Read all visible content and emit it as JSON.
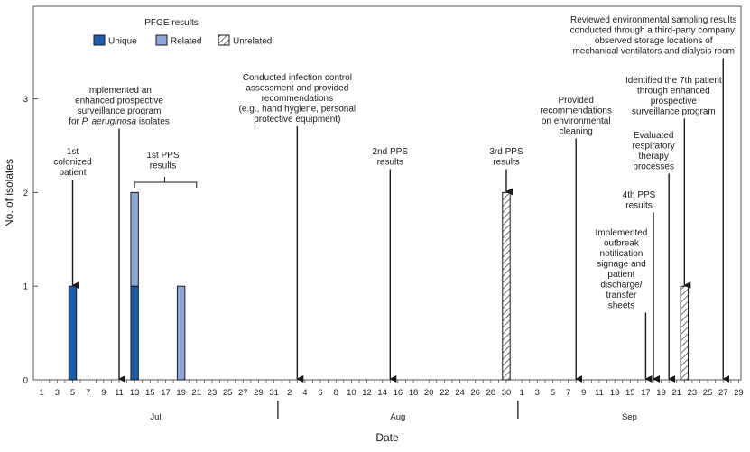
{
  "chart_data": {
    "type": "bar",
    "xlabel": "Date",
    "ylabel": "No. of isolates",
    "ylim": [
      0,
      4
    ],
    "y_ticks": [
      "0",
      "1",
      "2",
      "3"
    ],
    "x_tick_labels": [
      "1",
      "3",
      "5",
      "7",
      "9",
      "11",
      "13",
      "15",
      "17",
      "19",
      "21",
      "23",
      "25",
      "27",
      "29",
      "31",
      "2",
      "4",
      "6",
      "8",
      "10",
      "12",
      "14",
      "16",
      "18",
      "20",
      "22",
      "24",
      "26",
      "28",
      "30",
      "1",
      "3",
      "5",
      "7",
      "9",
      "11",
      "13",
      "15",
      "17",
      "19",
      "21",
      "23",
      "25",
      "27",
      "29"
    ],
    "months": [
      {
        "name": "Jul",
        "start": 0,
        "end": 31
      },
      {
        "name": "Aug",
        "start": 31,
        "end": 61
      },
      {
        "name": "Sep",
        "start": 61,
        "end": 90
      }
    ],
    "legend": {
      "title": "PFGE results",
      "placement": "top-left",
      "items": [
        {
          "key": "unique",
          "label": "Unique",
          "color": "#1e5ba8"
        },
        {
          "key": "related",
          "label": "Related",
          "color": "#8fa6d6"
        },
        {
          "key": "unrelated",
          "label": "Unrelated",
          "pattern": "hatch"
        }
      ]
    },
    "series": [
      {
        "key": "unique",
        "points": [
          {
            "date": "Jul 5",
            "count": 1
          },
          {
            "date": "Jul 13",
            "count": 1
          }
        ]
      },
      {
        "key": "related",
        "points": [
          {
            "date": "Jul 13",
            "count": 1
          },
          {
            "date": "Jul 19",
            "count": 1
          }
        ]
      },
      {
        "key": "unrelated",
        "points": [
          {
            "date": "Aug 30",
            "count": 2
          },
          {
            "date": "Sep 22",
            "count": 1
          }
        ]
      }
    ],
    "annotations": [
      {
        "id": "a1",
        "date": "Jul 5",
        "lines": [
          "1st",
          "colonized",
          "patient"
        ],
        "arrow_to": 1
      },
      {
        "id": "a2",
        "date": "Jul 11",
        "lines": [
          "Implemented an",
          "enhanced prospective",
          "surveillance program",
          "for P. aeruginosa isolates"
        ],
        "arrow_to": 0
      },
      {
        "id": "a3",
        "date": "Jul 13–21",
        "lines": [
          "1st PPS",
          "results"
        ],
        "bracket": true
      },
      {
        "id": "a4",
        "date": "Aug 3",
        "lines": [
          "Conducted infection control",
          "assessment and provided",
          "recommendations",
          "(e.g., hand hygiene, personal",
          "protective equipment)"
        ],
        "arrow_to": 0
      },
      {
        "id": "a5",
        "date": "Aug 15",
        "lines": [
          "2nd PPS",
          "results"
        ],
        "arrow_to": 0
      },
      {
        "id": "a6",
        "date": "Aug 30",
        "lines": [
          "3rd PPS",
          "results"
        ],
        "arrow_to": 2
      },
      {
        "id": "a7",
        "date": "Sep 8",
        "lines": [
          "Provided",
          "recommendations",
          "on environmental",
          "cleaning"
        ],
        "arrow_to": 0
      },
      {
        "id": "a8",
        "date": "Sep 22",
        "lines": [
          "Identified the 7th patient",
          "through enhanced",
          "prospective",
          "surveillance program"
        ],
        "arrow_to": 1
      },
      {
        "id": "a9",
        "date": "Sep 20",
        "lines": [
          "Evaluated",
          "respiratory",
          "therapy",
          "processes"
        ],
        "arrow_to": 0
      },
      {
        "id": "a10",
        "date": "Sep 18",
        "lines": [
          "4th PPS",
          "results"
        ],
        "arrow_to": 0
      },
      {
        "id": "a11",
        "date": "Sep 17",
        "lines": [
          "Implemented",
          "outbreak",
          "notification",
          "signage and",
          "patient",
          "discharge/",
          "transfer",
          "sheets"
        ],
        "arrow_to": 0
      },
      {
        "id": "a12",
        "date": "Sep 27",
        "lines": [
          "Reviewed environmental sampling results",
          "conducted through a third-party company;",
          "observed storage locations of",
          "mechanical ventilators and dialysis room"
        ],
        "arrow_to": 0
      }
    ]
  }
}
